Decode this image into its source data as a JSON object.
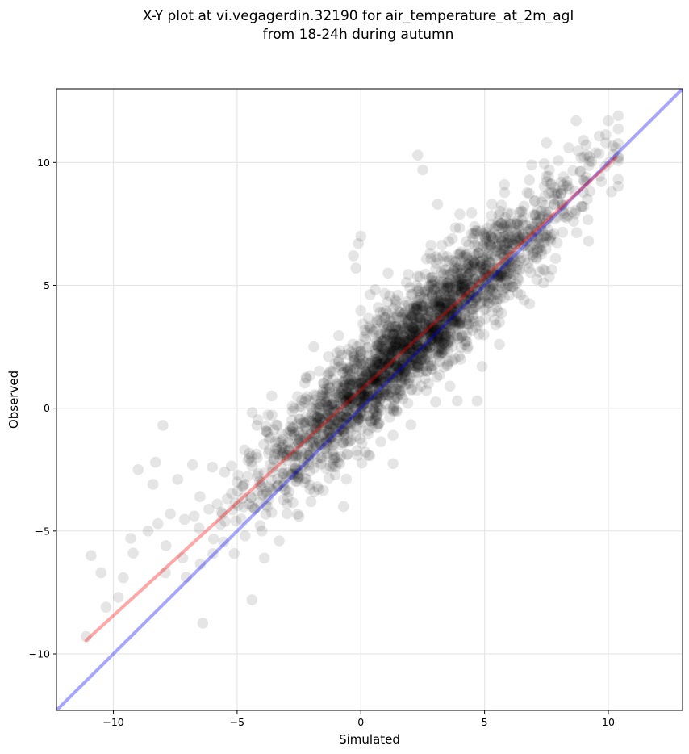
{
  "chart_data": {
    "type": "scatter",
    "title_line1": "X-Y plot at vi.vegagerdin.32190 for air_temperature_at_2m_agl",
    "title_line2": "from 18-24h during autumn",
    "xlabel": "Simulated",
    "ylabel": "Observed",
    "xlim": [
      -12.3,
      13.0
    ],
    "ylim": [
      -12.3,
      13.0
    ],
    "xticks": [
      -10,
      -5,
      0,
      5,
      10
    ],
    "yticks": [
      -10,
      -5,
      0,
      5,
      10
    ],
    "xtick_labels": [
      "−10",
      "−5",
      "0",
      "5",
      "10"
    ],
    "ytick_labels": [
      "−10",
      "−5",
      "0",
      "5",
      "10"
    ],
    "grid": true,
    "point_color": "#000000",
    "point_opacity": 0.1,
    "scatter_series": {
      "distribution": "dense cloud along fit line",
      "sim_range": [
        -11.1,
        10.4
      ],
      "obs_range": [
        -9.3,
        11.9
      ],
      "n_points": 2400
    },
    "points": [
      [
        -10.9,
        -6.0
      ],
      [
        -10.5,
        -6.7
      ],
      [
        -10.3,
        -8.1
      ],
      [
        -9.8,
        -7.7
      ],
      [
        -9.6,
        -6.9
      ],
      [
        -9.3,
        -5.3
      ],
      [
        -9.2,
        -5.9
      ],
      [
        -9.0,
        -2.5
      ],
      [
        -8.6,
        -5.0
      ],
      [
        -8.4,
        -3.1
      ],
      [
        -8.3,
        -2.2
      ],
      [
        -8.2,
        -4.7
      ],
      [
        -8.0,
        -0.7
      ],
      [
        -7.9,
        -6.7
      ],
      [
        -7.7,
        -4.3
      ],
      [
        -7.4,
        -2.9
      ],
      [
        -7.2,
        -6.1
      ],
      [
        -6.8,
        -2.3
      ],
      [
        -6.5,
        -3.6
      ],
      [
        -6.0,
        -2.4
      ],
      [
        -5.8,
        -3.9
      ],
      [
        -5.5,
        -2.6
      ],
      [
        -5.0,
        -3.0
      ],
      [
        -4.7,
        -1.7
      ],
      [
        -4.4,
        -7.8
      ],
      [
        -4.3,
        -4.1
      ],
      [
        -4.2,
        -0.7
      ],
      [
        -4.0,
        -5.0
      ],
      [
        -3.9,
        -6.1
      ],
      [
        -3.6,
        0.5
      ],
      [
        -3.3,
        -5.4
      ],
      [
        -3.1,
        -2.0
      ],
      [
        -2.9,
        -3.4
      ],
      [
        -2.7,
        0.0
      ],
      [
        -2.5,
        -4.4
      ],
      [
        -2.3,
        -1.3
      ],
      [
        -2.1,
        -2.3
      ],
      [
        -1.9,
        2.5
      ],
      [
        -1.7,
        -3.3
      ],
      [
        -1.5,
        1.0
      ],
      [
        -1.3,
        -0.9
      ],
      [
        -1.1,
        -2.1
      ],
      [
        -0.9,
        1.9
      ],
      [
        -0.7,
        -4.0
      ],
      [
        -0.5,
        0.4
      ],
      [
        -0.3,
        6.2
      ],
      [
        -0.2,
        5.7
      ],
      [
        -0.1,
        6.7
      ],
      [
        0.0,
        7.0
      ],
      [
        0.2,
        2.8
      ],
      [
        0.3,
        -1.9
      ],
      [
        0.5,
        0.9
      ],
      [
        0.7,
        4.1
      ],
      [
        0.9,
        2.4
      ],
      [
        1.1,
        5.5
      ],
      [
        1.3,
        -1.1
      ],
      [
        1.5,
        4.6
      ],
      [
        1.7,
        1.7
      ],
      [
        1.9,
        0.2
      ],
      [
        2.1,
        3.1
      ],
      [
        2.3,
        10.3
      ],
      [
        2.5,
        9.7
      ],
      [
        2.6,
        1.2
      ],
      [
        2.8,
        6.3
      ],
      [
        3.0,
        2.3
      ],
      [
        3.1,
        8.3
      ],
      [
        3.3,
        4.1
      ],
      [
        3.5,
        1.8
      ],
      [
        3.6,
        0.9
      ],
      [
        3.7,
        6.9
      ],
      [
        3.9,
        0.3
      ],
      [
        4.0,
        7.9
      ],
      [
        4.2,
        2.6
      ],
      [
        4.4,
        4.7
      ],
      [
        4.6,
        5.9
      ],
      [
        4.7,
        0.3
      ],
      [
        4.9,
        1.7
      ],
      [
        5.1,
        6.8
      ],
      [
        5.3,
        8.3
      ],
      [
        5.4,
        3.6
      ],
      [
        5.6,
        2.6
      ],
      [
        5.8,
        9.1
      ],
      [
        6.0,
        4.6
      ],
      [
        6.3,
        7.1
      ],
      [
        6.6,
        4.4
      ],
      [
        6.9,
        9.9
      ],
      [
        7.2,
        7.6
      ],
      [
        7.5,
        10.8
      ],
      [
        7.8,
        7.1
      ],
      [
        8.1,
        9.2
      ],
      [
        8.4,
        10.6
      ],
      [
        8.7,
        11.7
      ],
      [
        8.9,
        10.2
      ],
      [
        9.2,
        6.8
      ],
      [
        9.5,
        10.4
      ],
      [
        9.9,
        10.8
      ],
      [
        10.0,
        11.7
      ],
      [
        10.4,
        11.9
      ],
      [
        10.3,
        10.6
      ],
      [
        9.0,
        10.9
      ]
    ],
    "fit_line": {
      "color": "#ff0000",
      "opacity": 0.35,
      "start": [
        -11.1,
        -9.45
      ],
      "end": [
        10.3,
        10.2
      ]
    },
    "identity_line": {
      "color": "#0000ff",
      "opacity": 0.35,
      "start": [
        -12.3,
        -12.3
      ],
      "end": [
        13.0,
        13.0
      ]
    }
  }
}
